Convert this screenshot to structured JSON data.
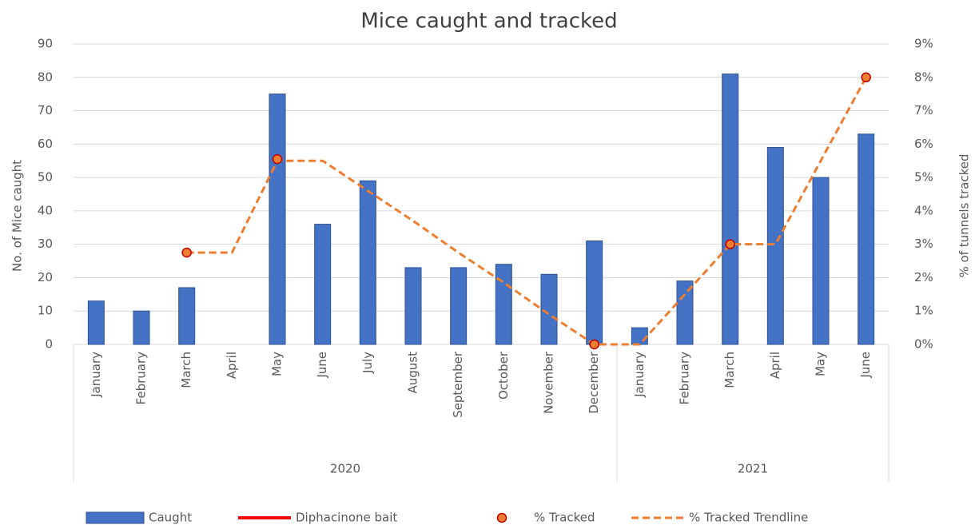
{
  "chart_data": {
    "type": "bar-line",
    "title": "Mice caught and tracked",
    "y_label": "No. of Mice caught",
    "y2_label": "% of tunnels tracked",
    "categories": [
      "January",
      "February",
      "March",
      "April",
      "May",
      "June",
      "July",
      "August",
      "September",
      "October",
      "November",
      "December",
      "January",
      "February",
      "March",
      "April",
      "May",
      "June"
    ],
    "groups": [
      {
        "label": "2020",
        "count": 12
      },
      {
        "label": "2021",
        "count": 6
      }
    ],
    "ylim": [
      0,
      90
    ],
    "yticks": [
      0,
      10,
      20,
      30,
      40,
      50,
      60,
      70,
      80,
      90
    ],
    "y2lim": [
      0,
      9
    ],
    "y2ticks": [
      {
        "value": 0,
        "label": "0%"
      },
      {
        "value": 1,
        "label": "1%"
      },
      {
        "value": 2,
        "label": "2%"
      },
      {
        "value": 3,
        "label": "3%"
      },
      {
        "value": 4,
        "label": "4%"
      },
      {
        "value": 5,
        "label": "5%"
      },
      {
        "value": 6,
        "label": "6%"
      },
      {
        "value": 7,
        "label": "7%"
      },
      {
        "value": 8,
        "label": "8%"
      },
      {
        "value": 9,
        "label": "9%"
      }
    ],
    "grid": true,
    "legend": "bottom",
    "series": [
      {
        "name": "Caught",
        "kind": "bar",
        "color": "#4472c4",
        "values": [
          13,
          10,
          17,
          null,
          75,
          36,
          49,
          23,
          23,
          24,
          21,
          31,
          5,
          19,
          81,
          59,
          50,
          63
        ]
      },
      {
        "name": "Diphacinone bait",
        "kind": "line",
        "color": "#ff0000",
        "axis": "y2",
        "values": [
          null,
          null,
          null,
          null,
          null,
          null,
          null,
          null,
          null,
          null,
          null,
          null,
          null,
          null,
          null,
          null,
          null,
          null
        ]
      },
      {
        "name": "% Tracked",
        "kind": "points",
        "color": "#ed7d31",
        "axis": "y2",
        "values": [
          null,
          null,
          2.75,
          null,
          5.55,
          null,
          null,
          null,
          null,
          null,
          null,
          0,
          null,
          null,
          3,
          null,
          null,
          8
        ]
      },
      {
        "name": "% Tracked Trendline",
        "kind": "dashed",
        "color": "#ed7d31",
        "axis": "y2",
        "values": [
          null,
          null,
          2.75,
          2.75,
          5.5,
          5.5,
          4.6,
          3.7,
          2.75,
          1.85,
          0.9,
          0,
          0,
          1.5,
          3,
          3,
          5.5,
          8
        ]
      }
    ]
  }
}
